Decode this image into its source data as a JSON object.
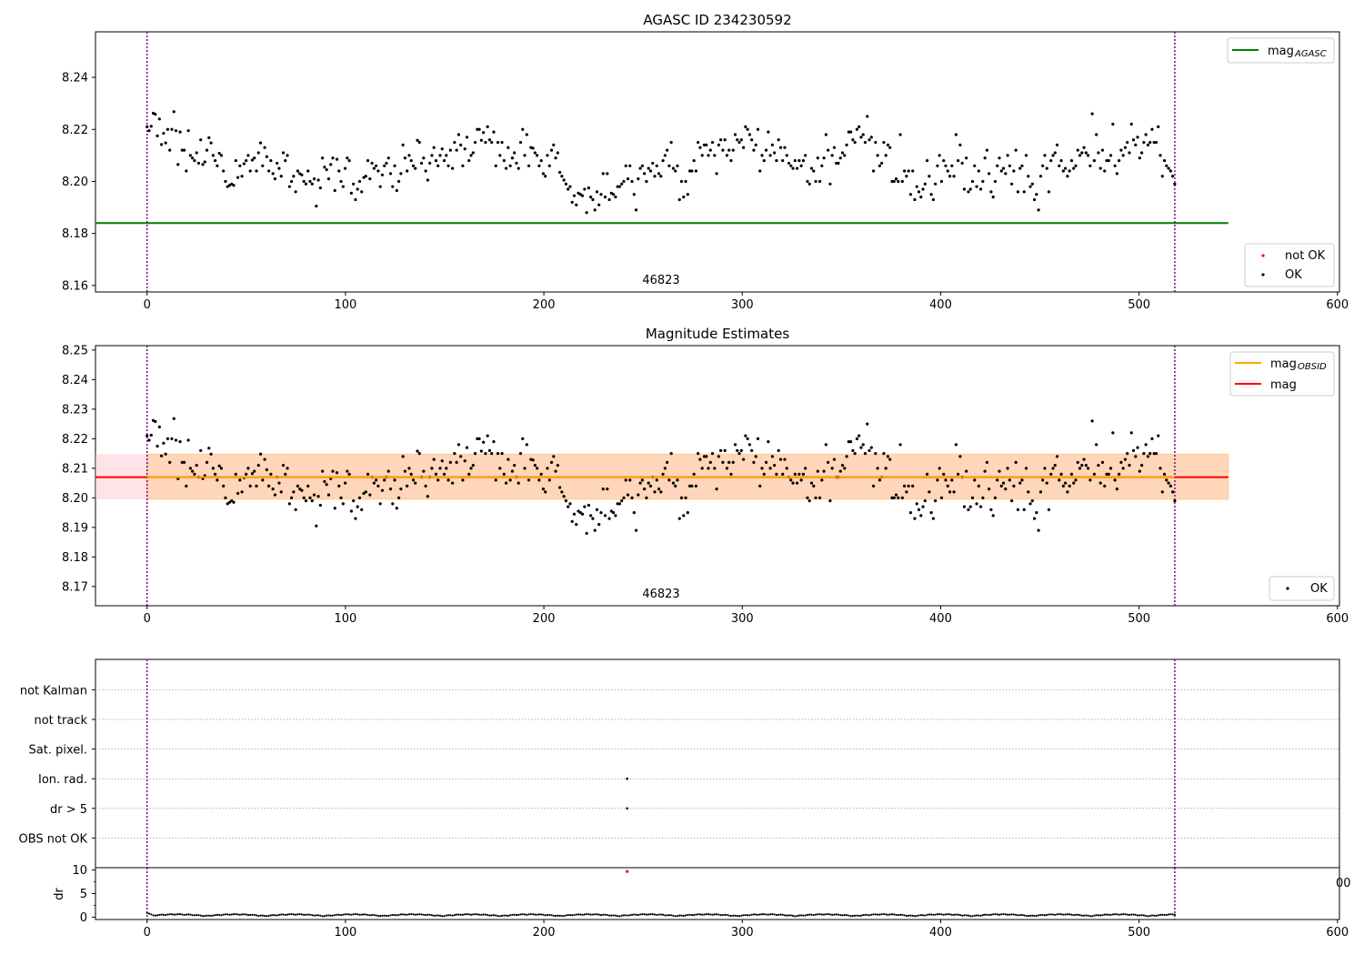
{
  "chart_data": [
    {
      "type": "scatter",
      "title": "AGASC ID 234230592",
      "xlim": [
        -26,
        601
      ],
      "ylim": [
        8.1575,
        8.2575
      ],
      "xticks": [
        0,
        100,
        200,
        300,
        400,
        500,
        600
      ],
      "yticks": [
        8.16,
        8.18,
        8.2,
        8.22,
        8.24
      ],
      "ytick_labels": [
        "8.16",
        "8.18",
        "8.20",
        "8.22",
        "8.24"
      ],
      "obsid_label": "46823",
      "obsid_label_x": 259,
      "vlines": [
        0,
        518
      ],
      "hlines": [
        {
          "name": "mag_AGASC",
          "value": 8.184,
          "x": [
            -26,
            545
          ],
          "color": "#008000"
        }
      ],
      "legend_lines": {
        "label_main": "mag",
        "label_sub": "AGASC",
        "color": "#008000",
        "placement": "upper right"
      },
      "legend_points": {
        "placement": "lower right",
        "entries": [
          {
            "label": "not OK",
            "color": "#ff0000"
          },
          {
            "label": "OK",
            "color": "#000000"
          }
        ]
      },
      "series": [
        {
          "name": "OK",
          "color": "#000000",
          "from": "shared_series"
        }
      ]
    },
    {
      "type": "scatter",
      "title": "Magnitude Estimates",
      "xlim": [
        -26,
        601
      ],
      "ylim": [
        8.1635,
        8.2515
      ],
      "xticks": [
        0,
        100,
        200,
        300,
        400,
        500,
        600
      ],
      "yticks": [
        8.17,
        8.18,
        8.19,
        8.2,
        8.21,
        8.22,
        8.23,
        8.24,
        8.25
      ],
      "ytick_labels": [
        "8.17",
        "8.18",
        "8.19",
        "8.20",
        "8.21",
        "8.22",
        "8.23",
        "8.24",
        "8.25"
      ],
      "obsid_label": "46823",
      "obsid_label_x": 259,
      "vlines": [
        0,
        518
      ],
      "bands": [
        {
          "x": [
            -26,
            545
          ],
          "y": [
            8.1995,
            8.2148
          ],
          "color": "#ffc0cb",
          "opacity": 0.45
        },
        {
          "x": [
            0,
            545
          ],
          "y": [
            8.1995,
            8.2148
          ],
          "color": "#ffa500",
          "opacity": 0.2
        }
      ],
      "hlines": [
        {
          "name": "mag",
          "value": 8.207,
          "x": [
            -26,
            545
          ],
          "color": "#ff0000"
        },
        {
          "name": "mag_OBSID",
          "value": 8.207,
          "x": [
            0,
            518
          ],
          "color": "#ffa500"
        }
      ],
      "legend_lines": {
        "placement": "upper right",
        "entries": [
          {
            "label_main": "mag",
            "label_sub": "OBSID",
            "color": "#ffa500"
          },
          {
            "label_main": "mag",
            "label_sub": "",
            "color": "#ff0000"
          }
        ]
      },
      "legend_points": {
        "placement": "lower right",
        "entries": [
          {
            "label": "OK",
            "color": "#000000"
          }
        ]
      },
      "series": [
        {
          "name": "OK",
          "color": "#000000",
          "from": "shared_series"
        }
      ]
    },
    {
      "type": "scatter",
      "title": "",
      "xlim": [
        -26,
        601
      ],
      "categories": [
        "OBS not OK",
        "dr > 5",
        "Ion. rad.",
        "Sat. pixel.",
        "not track",
        "not Kalman"
      ],
      "vlines": [
        0,
        518
      ],
      "flag_points": [
        {
          "category": "Ion. rad.",
          "x": 242
        },
        {
          "category": "dr > 5",
          "x": 242
        }
      ]
    },
    {
      "type": "scatter",
      "title": "",
      "ylabel": "dr",
      "xlim": [
        -26,
        601
      ],
      "ylim": [
        -0.5,
        10.5
      ],
      "yticks": [
        0,
        5,
        10
      ],
      "ytick_labels": [
        "0",
        "5",
        "10"
      ],
      "xticks": [
        0,
        100,
        200,
        300,
        400,
        500,
        600
      ],
      "stray_label": "00",
      "vlines": [
        0,
        518
      ],
      "outliers": [
        {
          "x": 242,
          "y": 9.7,
          "color": "#ff0000"
        }
      ],
      "series": [
        {
          "name": "dr",
          "color": "#000000",
          "description": "residual distance per sample, mostly 0-1"
        }
      ]
    }
  ],
  "shared_series": {
    "x_start": 0,
    "x_end": 518,
    "y": [
      8.221,
      8.2195,
      8.2212,
      8.2262,
      8.2258,
      8.2175,
      8.224,
      8.2142,
      8.2185,
      8.2148,
      8.22,
      8.212,
      8.22,
      8.2268,
      8.2195,
      8.2065,
      8.219,
      8.212,
      8.212,
      8.204,
      8.2195,
      8.21,
      8.209,
      8.208,
      8.211,
      8.207,
      8.216,
      8.2065,
      8.2075,
      8.212,
      8.2168,
      8.2148,
      8.21,
      8.208,
      8.206,
      8.2108,
      8.21,
      8.204,
      8.2,
      8.198,
      8.1985,
      8.199,
      8.1985,
      8.208,
      8.2015,
      8.206,
      8.202,
      8.2068,
      8.208,
      8.21,
      8.204,
      8.2082,
      8.209,
      8.204,
      8.211,
      8.2148,
      8.206,
      8.213,
      8.2095,
      8.204,
      8.208,
      8.203,
      8.201,
      8.207,
      8.205,
      8.202,
      8.211,
      8.208,
      8.21,
      8.198,
      8.2,
      8.202,
      8.196,
      8.204,
      8.203,
      8.2025,
      8.2,
      8.199,
      8.204,
      8.2,
      8.199,
      8.201,
      8.1905,
      8.2005,
      8.1975,
      8.209,
      8.2055,
      8.2045,
      8.201,
      8.2065,
      8.209,
      8.1965,
      8.2085,
      8.204,
      8.2,
      8.198,
      8.205,
      8.209,
      8.208,
      8.1955,
      8.199,
      8.193,
      8.197,
      8.2,
      8.196,
      8.2015,
      8.202,
      8.208,
      8.201,
      8.207,
      8.205,
      8.206,
      8.204,
      8.198,
      8.2025,
      8.206,
      8.207,
      8.209,
      8.203,
      8.198,
      8.206,
      8.1965,
      8.2,
      8.203,
      8.214,
      8.209,
      8.204,
      8.21,
      8.208,
      8.206,
      8.205,
      8.2158,
      8.215,
      8.207,
      8.209,
      8.204,
      8.2005,
      8.207,
      8.21,
      8.213,
      8.208,
      8.206,
      8.21,
      8.2125,
      8.208,
      8.21,
      8.206,
      8.212,
      8.205,
      8.215,
      8.212,
      8.218,
      8.214,
      8.206,
      8.2125,
      8.217,
      8.208,
      8.21,
      8.211,
      8.215,
      8.22,
      8.22,
      8.2158,
      8.2188,
      8.215,
      8.221,
      8.216,
      8.215,
      8.219,
      8.206,
      8.215,
      8.21,
      8.215,
      8.208,
      8.205,
      8.213,
      8.206,
      8.209,
      8.211,
      8.207,
      8.205,
      8.215,
      8.22,
      8.21,
      8.218,
      8.206,
      8.213,
      8.2128,
      8.211,
      8.21,
      8.206,
      8.208,
      8.203,
      8.202,
      8.21,
      8.206,
      8.212,
      8.214,
      8.209,
      8.211,
      8.2035,
      8.202,
      8.2005,
      8.199,
      8.197,
      8.198,
      8.192,
      8.1945,
      8.191,
      8.1955,
      8.195,
      8.1945,
      8.197,
      8.188,
      8.1975,
      8.194,
      8.193,
      8.189,
      8.196,
      8.191,
      8.195,
      8.203,
      8.194,
      8.203,
      8.193,
      8.1955,
      8.195,
      8.194,
      8.198,
      8.198,
      8.199,
      8.2,
      8.206,
      8.201,
      8.206,
      8.2,
      8.195,
      8.189,
      8.201,
      8.205,
      8.206,
      8.203,
      8.2,
      8.205,
      8.204,
      8.207,
      8.202,
      8.206,
      8.203,
      8.202,
      8.208,
      8.21,
      8.212,
      8.206,
      8.215,
      8.205,
      8.204,
      8.206,
      8.193,
      8.2,
      8.194,
      8.2,
      8.195,
      8.204,
      8.204,
      8.208,
      8.204,
      8.215,
      8.213,
      8.21,
      8.214,
      8.214,
      8.21,
      8.212,
      8.215,
      8.21,
      8.203,
      8.214,
      8.216,
      8.212,
      8.216,
      8.21,
      8.212,
      8.208,
      8.212,
      8.218,
      8.216,
      8.215,
      8.216,
      8.213,
      8.221,
      8.22,
      8.218,
      8.216,
      8.212,
      8.214,
      8.22,
      8.204,
      8.21,
      8.208,
      8.212,
      8.219,
      8.21,
      8.214,
      8.211,
      8.208,
      8.216,
      8.213,
      8.208,
      8.213,
      8.21,
      8.207,
      8.206,
      8.205,
      8.208,
      8.205,
      8.208,
      8.206,
      8.208,
      8.21,
      8.2,
      8.199,
      8.205,
      8.204,
      8.2,
      8.209,
      8.2,
      8.206,
      8.209,
      8.218,
      8.212,
      8.199,
      8.21,
      8.213,
      8.207,
      8.207,
      8.209,
      8.211,
      8.21,
      8.214,
      8.219,
      8.219,
      8.216,
      8.215,
      8.22,
      8.221,
      8.217,
      8.218,
      8.215,
      8.225,
      8.216,
      8.217,
      8.204,
      8.215,
      8.21,
      8.206,
      8.207,
      8.215,
      8.21,
      8.214,
      8.213,
      8.2,
      8.2,
      8.201,
      8.2,
      8.218,
      8.2,
      8.204,
      8.202,
      8.204,
      8.195,
      8.204,
      8.193,
      8.198,
      8.196,
      8.194,
      8.197,
      8.199,
      8.208,
      8.202,
      8.195,
      8.193,
      8.199,
      8.206,
      8.21,
      8.2,
      8.208,
      8.206,
      8.204,
      8.202,
      8.206,
      8.202,
      8.218,
      8.208,
      8.214,
      8.207,
      8.197,
      8.209,
      8.196,
      8.197,
      8.2,
      8.206,
      8.198,
      8.204,
      8.197,
      8.2,
      8.209,
      8.212,
      8.203,
      8.196,
      8.194,
      8.2,
      8.206,
      8.209,
      8.204,
      8.205,
      8.203,
      8.21,
      8.206,
      8.199,
      8.204,
      8.212,
      8.196,
      8.205,
      8.206,
      8.196,
      8.21,
      8.202,
      8.198,
      8.199,
      8.193,
      8.195,
      8.189,
      8.202,
      8.206,
      8.21,
      8.205,
      8.196,
      8.208,
      8.21,
      8.211,
      8.214,
      8.206,
      8.208,
      8.204,
      8.205,
      8.202,
      8.204,
      8.208,
      8.205,
      8.206,
      8.212,
      8.21,
      8.211,
      8.213,
      8.211,
      8.21,
      8.206,
      8.226,
      8.208,
      8.218,
      8.211,
      8.205,
      8.212,
      8.204,
      8.208,
      8.208,
      8.21,
      8.222,
      8.206,
      8.203,
      8.208,
      8.212,
      8.21,
      8.213,
      8.215,
      8.211,
      8.222,
      8.216,
      8.214,
      8.217,
      8.209,
      8.211,
      8.215,
      8.218,
      8.214,
      8.215,
      8.22,
      8.215,
      8.215,
      8.221,
      8.21,
      8.202,
      8.208,
      8.206,
      8.205,
      8.204,
      8.202,
      8.199
    ]
  }
}
